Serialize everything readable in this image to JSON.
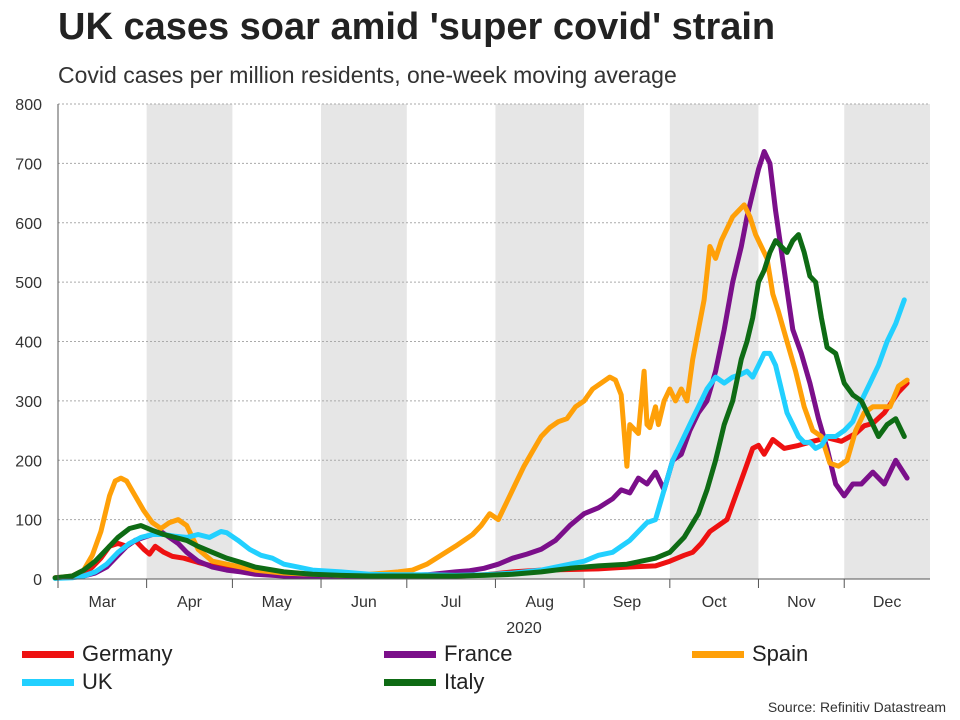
{
  "title": "UK cases soar amid 'super covid' strain",
  "subtitle": "Covid cases per million residents, one-week moving average",
  "source": "Source: Refinitiv Datastream",
  "chart_data": {
    "type": "line",
    "title": "UK cases soar amid 'super covid' strain",
    "subtitle": "Covid cases per million residents, one-week moving average",
    "xlabel": "2020",
    "ylabel": "",
    "ylim": [
      0,
      800
    ],
    "yticks": [
      0,
      100,
      200,
      300,
      400,
      500,
      600,
      700,
      800
    ],
    "months": [
      "Mar",
      "Apr",
      "May",
      "Jun",
      "Jul",
      "Aug",
      "Sep",
      "Oct",
      "Nov",
      "Dec"
    ],
    "x_unit": "day of year 2020",
    "x_domain": [
      61,
      366
    ],
    "grid": true,
    "colors": {
      "shade": "#e6e6e6",
      "grid": "#aaaaaa",
      "axis": "#555555",
      "text": "#333333"
    },
    "series": [
      {
        "name": "Germany",
        "color": "#ee1111",
        "x": [
          60,
          66,
          70,
          73,
          76,
          79,
          82,
          85,
          88,
          91,
          93,
          95,
          98,
          101,
          105,
          110,
          115,
          120,
          125,
          132,
          140,
          150,
          160,
          170,
          180,
          190,
          200,
          210,
          220,
          230,
          240,
          250,
          260,
          270,
          275,
          280,
          283,
          286,
          289,
          292,
          295,
          298,
          301,
          304,
          306,
          308,
          311,
          315,
          320,
          325,
          330,
          335,
          340,
          343,
          346,
          350,
          355,
          358
        ],
        "values": [
          2,
          3,
          8,
          20,
          35,
          55,
          60,
          55,
          65,
          50,
          42,
          55,
          45,
          38,
          35,
          28,
          22,
          18,
          14,
          10,
          8,
          6,
          5,
          5,
          5,
          5,
          5,
          7,
          12,
          15,
          16,
          17,
          20,
          22,
          30,
          40,
          45,
          60,
          80,
          90,
          100,
          140,
          180,
          220,
          225,
          210,
          235,
          220,
          225,
          232,
          238,
          232,
          245,
          258,
          262,
          280,
          315,
          330
        ]
      },
      {
        "name": "France",
        "color": "#7b0f8a",
        "x": [
          60,
          66,
          70,
          74,
          78,
          82,
          85,
          88,
          91,
          94,
          97,
          100,
          103,
          106,
          110,
          115,
          120,
          125,
          130,
          140,
          150,
          160,
          170,
          180,
          190,
          200,
          205,
          210,
          215,
          220,
          225,
          230,
          235,
          240,
          245,
          250,
          255,
          258,
          261,
          264,
          267,
          270,
          273,
          276,
          279,
          282,
          285,
          288,
          291,
          294,
          297,
          300,
          302,
          304,
          306,
          308,
          310,
          312,
          315,
          318,
          321,
          324,
          327,
          330,
          333,
          336,
          339,
          342,
          346,
          350,
          354,
          358
        ],
        "values": [
          2,
          3,
          5,
          10,
          20,
          40,
          55,
          65,
          70,
          75,
          80,
          70,
          60,
          45,
          30,
          20,
          15,
          12,
          8,
          5,
          4,
          4,
          4,
          5,
          7,
          12,
          14,
          18,
          25,
          35,
          42,
          50,
          65,
          90,
          110,
          120,
          135,
          150,
          145,
          170,
          160,
          180,
          150,
          200,
          210,
          250,
          280,
          300,
          350,
          420,
          500,
          560,
          610,
          650,
          690,
          720,
          700,
          620,
          520,
          420,
          380,
          330,
          270,
          220,
          160,
          140,
          160,
          160,
          180,
          160,
          200,
          170
        ]
      },
      {
        "name": "Spain",
        "color": "#ffa008",
        "x": [
          60,
          66,
          70,
          73,
          76,
          79,
          81,
          83,
          85,
          88,
          91,
          94,
          97,
          100,
          103,
          106,
          110,
          115,
          120,
          125,
          130,
          140,
          150,
          160,
          170,
          180,
          185,
          190,
          195,
          200,
          203,
          206,
          209,
          212,
          215,
          218,
          221,
          224,
          227,
          230,
          233,
          236,
          239,
          242,
          245,
          248,
          251,
          254,
          256,
          258,
          260,
          261,
          262,
          264,
          266,
          267,
          268,
          270,
          271,
          273,
          275,
          277,
          279,
          281,
          283,
          285,
          287,
          289,
          291,
          293,
          295,
          297,
          299,
          301,
          303,
          305,
          307,
          309,
          311,
          313,
          316,
          319,
          322,
          325,
          328,
          331,
          334,
          337,
          340,
          343,
          346,
          349,
          352,
          355,
          358
        ],
        "values": [
          2,
          5,
          15,
          40,
          80,
          140,
          165,
          170,
          165,
          140,
          115,
          95,
          85,
          95,
          100,
          90,
          50,
          30,
          25,
          20,
          15,
          10,
          8,
          6,
          8,
          12,
          15,
          25,
          40,
          55,
          65,
          75,
          90,
          110,
          100,
          130,
          160,
          190,
          215,
          240,
          255,
          265,
          270,
          290,
          300,
          320,
          330,
          340,
          335,
          310,
          190,
          260,
          255,
          245,
          350,
          260,
          255,
          290,
          260,
          300,
          320,
          300,
          320,
          300,
          370,
          420,
          470,
          560,
          540,
          570,
          590,
          610,
          620,
          630,
          610,
          580,
          560,
          540,
          480,
          450,
          400,
          350,
          290,
          250,
          240,
          195,
          190,
          200,
          250,
          280,
          290,
          290,
          290,
          325,
          335
        ]
      },
      {
        "name": "UK",
        "color": "#22d0ff",
        "x": [
          60,
          66,
          70,
          74,
          78,
          82,
          86,
          90,
          94,
          98,
          102,
          106,
          110,
          114,
          118,
          120,
          124,
          128,
          132,
          136,
          140,
          145,
          150,
          160,
          170,
          180,
          190,
          200,
          210,
          220,
          230,
          240,
          245,
          250,
          255,
          258,
          261,
          264,
          267,
          270,
          273,
          276,
          279,
          282,
          285,
          288,
          291,
          294,
          297,
          300,
          302,
          304,
          306,
          308,
          310,
          312,
          314,
          316,
          318,
          320,
          322,
          324,
          326,
          328,
          330,
          333,
          336,
          339,
          342,
          345,
          348,
          351,
          354,
          357
        ],
        "values": [
          1,
          2,
          5,
          12,
          25,
          45,
          60,
          70,
          75,
          75,
          72,
          70,
          75,
          70,
          80,
          78,
          65,
          50,
          40,
          35,
          25,
          20,
          15,
          12,
          8,
          7,
          7,
          6,
          7,
          10,
          15,
          25,
          30,
          40,
          45,
          55,
          65,
          80,
          95,
          100,
          150,
          200,
          230,
          260,
          290,
          320,
          340,
          330,
          340,
          345,
          350,
          340,
          360,
          380,
          380,
          360,
          320,
          280,
          260,
          240,
          230,
          230,
          220,
          225,
          240,
          240,
          250,
          265,
          300,
          330,
          360,
          400,
          430,
          470
        ]
      },
      {
        "name": "Italy",
        "color": "#0e6b14",
        "x": [
          60,
          66,
          70,
          74,
          78,
          82,
          86,
          90,
          94,
          98,
          102,
          106,
          110,
          115,
          120,
          125,
          130,
          140,
          150,
          160,
          170,
          180,
          190,
          200,
          210,
          220,
          230,
          240,
          250,
          260,
          265,
          270,
          275,
          280,
          285,
          288,
          291,
          294,
          297,
          300,
          302,
          304,
          306,
          308,
          310,
          312,
          314,
          316,
          318,
          320,
          322,
          324,
          326,
          328,
          330,
          333,
          336,
          339,
          342,
          345,
          348,
          351,
          354,
          357
        ],
        "values": [
          2,
          5,
          15,
          30,
          50,
          70,
          85,
          90,
          82,
          75,
          70,
          65,
          55,
          45,
          35,
          28,
          20,
          12,
          8,
          6,
          5,
          5,
          5,
          5,
          6,
          8,
          12,
          18,
          22,
          25,
          30,
          35,
          45,
          70,
          110,
          150,
          200,
          260,
          300,
          370,
          400,
          440,
          500,
          520,
          550,
          570,
          560,
          550,
          570,
          580,
          550,
          510,
          500,
          440,
          390,
          380,
          330,
          310,
          300,
          270,
          240,
          260,
          270,
          240
        ]
      }
    ]
  }
}
